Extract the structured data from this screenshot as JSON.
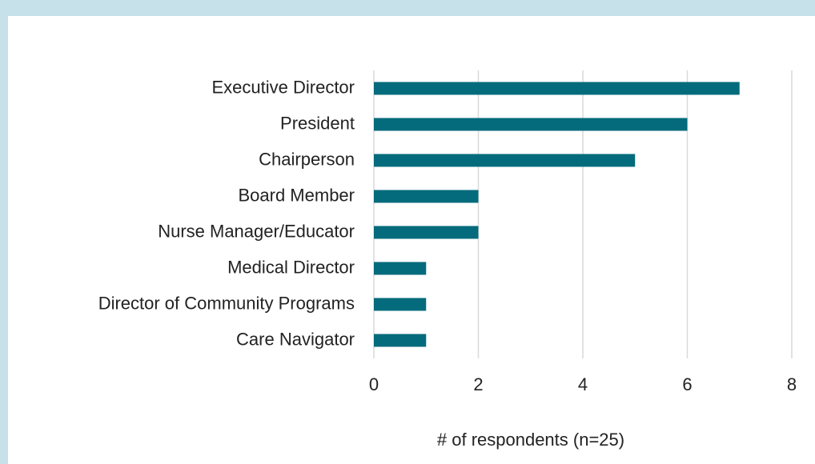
{
  "chart_data": {
    "type": "bar",
    "orientation": "horizontal",
    "xlabel": "# of respondents (n=25)",
    "categories": [
      "Executive Director",
      "President",
      "Chairperson",
      "Board Member",
      "Nurse Manager/Educator",
      "Medical Director",
      "Director of Community Programs",
      "Care Navigator"
    ],
    "values": [
      7,
      6,
      5,
      2,
      2,
      1,
      1,
      1
    ],
    "color": "#046b7c",
    "xlim": [
      0,
      8
    ],
    "xticks": [
      0,
      2,
      4,
      6,
      8
    ],
    "grid": true
  }
}
